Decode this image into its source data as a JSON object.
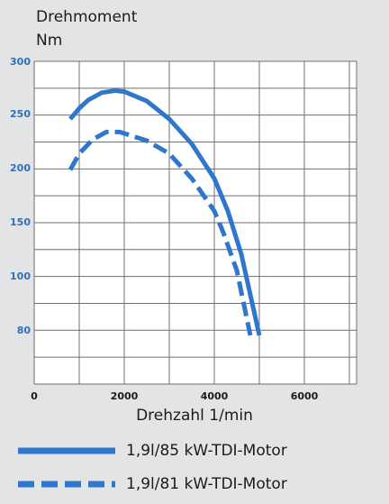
{
  "chart_data": {
    "type": "line",
    "ylabel": "Drehmoment",
    "yunit": "Nm",
    "xlabel": "Drehzahl 1/min",
    "x_ticks": [
      "0",
      "2000",
      "4000",
      "6000"
    ],
    "y_ticks": [
      "300",
      "250",
      "200",
      "150",
      "100",
      "80"
    ],
    "xlim": [
      0,
      6000
    ],
    "grid": true,
    "legend_position": "bottom",
    "series": [
      {
        "name": "1,9l/85 kW-TDI-Motor",
        "style": "solid",
        "color": "#2f77cc",
        "points": [
          [
            800,
            245
          ],
          [
            1000,
            255
          ],
          [
            1200,
            263
          ],
          [
            1500,
            270
          ],
          [
            1800,
            272
          ],
          [
            2000,
            271
          ],
          [
            2500,
            262
          ],
          [
            3000,
            245
          ],
          [
            3500,
            222
          ],
          [
            4000,
            190
          ],
          [
            4300,
            160
          ],
          [
            4600,
            120
          ],
          [
            5000,
            78
          ]
        ]
      },
      {
        "name": "1,9l/81 kW-TDI-Motor",
        "style": "dashed",
        "color": "#2f77cc",
        "points": [
          [
            800,
            198
          ],
          [
            1000,
            213
          ],
          [
            1300,
            226
          ],
          [
            1600,
            233
          ],
          [
            1900,
            233
          ],
          [
            2500,
            225
          ],
          [
            3000,
            213
          ],
          [
            3500,
            190
          ],
          [
            4000,
            160
          ],
          [
            4200,
            140
          ],
          [
            4500,
            105
          ],
          [
            4800,
            78
          ]
        ]
      }
    ]
  }
}
